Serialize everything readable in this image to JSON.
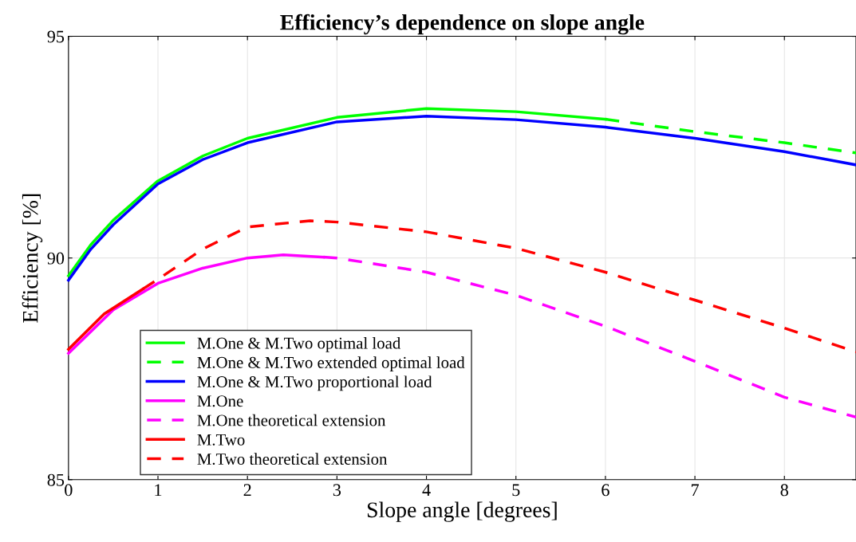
{
  "chart_data": {
    "type": "line",
    "title": "Efficiency’s dependence on slope angle",
    "xlabel": "Slope angle [degrees]",
    "ylabel": "Efficiency [%]",
    "xlim": [
      0,
      8.8
    ],
    "ylim": [
      85,
      95
    ],
    "xticks": [
      0,
      1,
      2,
      3,
      4,
      5,
      6,
      7,
      8
    ],
    "yticks": [
      85,
      90,
      95
    ],
    "grid": true,
    "legend": "bottom left",
    "marker": "none",
    "series": [
      {
        "name": "M.One & M.Two optimal load",
        "color": "#00ff00",
        "line_style": "solid",
        "x": [
          0,
          0.25,
          0.5,
          1,
          1.5,
          2,
          3,
          4,
          5,
          6
        ],
        "values": [
          89.6,
          90.3,
          90.85,
          91.74,
          92.3,
          92.7,
          93.17,
          93.37,
          93.3,
          93.13
        ]
      },
      {
        "name": "M.One & M.Two extended optimal load",
        "color": "#00ff00",
        "line_style": "dashed",
        "x": [
          6,
          7,
          8,
          8.8
        ],
        "values": [
          93.13,
          92.85,
          92.6,
          92.37
        ]
      },
      {
        "name": "M.One & M.Two proportional load",
        "color": "#0000ff",
        "line_style": "solid",
        "x": [
          0,
          0.25,
          0.5,
          1,
          1.5,
          2,
          3,
          4,
          5,
          6,
          7,
          8,
          8.8
        ],
        "values": [
          89.5,
          90.2,
          90.75,
          91.67,
          92.22,
          92.6,
          93.07,
          93.2,
          93.12,
          92.95,
          92.7,
          92.4,
          92.1
        ]
      },
      {
        "name": "M.One",
        "color": "#ff00ff",
        "line_style": "solid",
        "x": [
          0,
          0.5,
          1,
          1.5,
          2,
          2.4,
          2.85
        ],
        "values": [
          87.85,
          88.83,
          89.43,
          89.77,
          90.0,
          90.07,
          90.02
        ]
      },
      {
        "name": "M.One theoretical extension",
        "color": "#ff00ff",
        "line_style": "dashed",
        "x": [
          2.85,
          3,
          4,
          5,
          6,
          7,
          8,
          8.8
        ],
        "values": [
          90.02,
          90.0,
          89.68,
          89.16,
          88.46,
          87.67,
          86.86,
          86.41
        ]
      },
      {
        "name": "M.Two",
        "color": "#ff0000",
        "line_style": "solid",
        "x": [
          0,
          0.4,
          0.83
        ],
        "values": [
          87.94,
          88.74,
          89.3
        ]
      },
      {
        "name": "M.Two theoretical extension",
        "color": "#ff0000",
        "line_style": "dashed",
        "x": [
          0.83,
          1,
          1.5,
          2,
          2.7,
          3,
          4,
          5,
          6,
          7,
          8,
          8.8
        ],
        "values": [
          89.3,
          89.52,
          90.2,
          90.7,
          90.84,
          90.81,
          90.59,
          90.22,
          89.68,
          89.05,
          88.42,
          87.88
        ]
      }
    ]
  }
}
